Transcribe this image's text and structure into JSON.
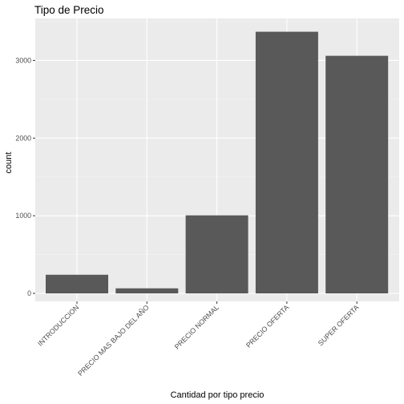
{
  "chart_data": {
    "type": "bar",
    "title": "Tipo de Precio",
    "xlabel": "Cantidad por tipo precio",
    "ylabel": "count",
    "categories": [
      "INTRODUCCION",
      "PRECIO MAS BAJO DEL AÑO",
      "PRECIO NORMAL",
      "PRECIO OFERTA",
      "SUPER OFERTA"
    ],
    "values": [
      240,
      65,
      1005,
      3370,
      3060
    ],
    "ylim": [
      0,
      3500
    ],
    "yticks": [
      0,
      1000,
      2000,
      3000
    ],
    "grid": true,
    "legend": "none",
    "colors": {
      "bar": "#595959",
      "panel": "#ebebeb",
      "grid_major": "#ffffff",
      "grid_minor": "#f5f5f5"
    }
  }
}
